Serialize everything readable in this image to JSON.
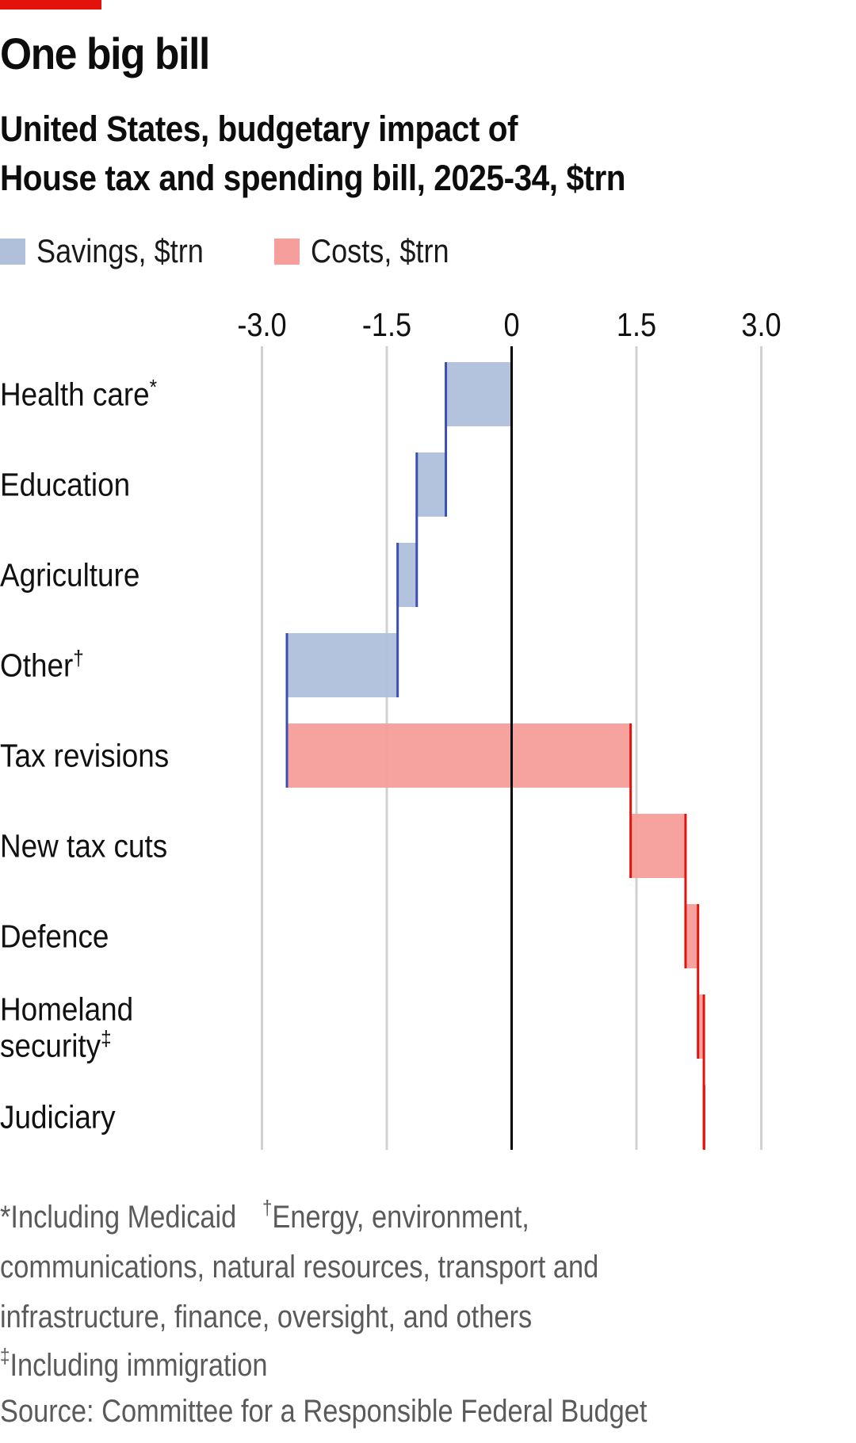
{
  "header": {
    "title": "One big bill",
    "subtitle_line1": "United States, budgetary impact of",
    "subtitle_line2": "House tax and spending bill, 2025-34, $trn"
  },
  "legend": [
    {
      "label": "Savings, $trn",
      "color": "#b0c0db"
    },
    {
      "label": "Costs, $trn",
      "color": "#f59e9b"
    }
  ],
  "colors": {
    "accent": "#e3120b",
    "savings_fill": "#b0c0db",
    "savings_edge": "#3a4fb0",
    "costs_fill": "#f59e9b",
    "costs_edge": "#e3120b",
    "zero_line": "#000000",
    "grid": "#d0d0d0"
  },
  "chart_data": {
    "type": "bar",
    "subtype": "waterfall-horizontal",
    "title": "One big bill",
    "subtitle": "United States, budgetary impact of House tax and spending bill, 2025-34, $trn",
    "xlabel": "",
    "ylabel": "",
    "xlim": [
      -3.0,
      3.0
    ],
    "x_ticks": [
      -3.0,
      -1.5,
      0,
      1.5,
      3.0
    ],
    "x_tick_labels": [
      "-3.0",
      "-1.5",
      "0",
      "1.5",
      "3.0"
    ],
    "grid": true,
    "legend_position": "top-left",
    "categories": [
      {
        "label": "Health care",
        "mark": "*"
      },
      {
        "label": "Education",
        "mark": ""
      },
      {
        "label": "Agriculture",
        "mark": ""
      },
      {
        "label": "Other",
        "mark": "†"
      },
      {
        "label": "Tax revisions",
        "mark": ""
      },
      {
        "label": "New tax cuts",
        "mark": ""
      },
      {
        "label": "Defence",
        "mark": ""
      },
      {
        "label": "Homeland security",
        "label_lines": [
          "Homeland",
          "security"
        ],
        "mark": "‡"
      },
      {
        "label": "Judiciary",
        "mark": ""
      }
    ],
    "series": [
      {
        "name": "Savings, $trn",
        "values": [
          -0.79,
          -0.35,
          -0.23,
          -1.33,
          null,
          null,
          null,
          null,
          null
        ]
      },
      {
        "name": "Costs, $trn",
        "values": [
          null,
          null,
          null,
          null,
          4.13,
          0.66,
          0.15,
          0.07,
          0.003
        ]
      }
    ],
    "values": [
      -0.79,
      -0.35,
      -0.23,
      -1.33,
      4.13,
      0.66,
      0.15,
      0.07,
      0.003
    ],
    "cumulative_end": [
      -0.79,
      -1.14,
      -1.37,
      -2.7,
      1.43,
      2.09,
      2.24,
      2.31,
      2.31
    ]
  },
  "footnotes": {
    "line1_a": "*Including Medicaid",
    "line1_b_mark": "†",
    "line1_b": "Energy, environment,",
    "line2": "communications, natural resources, transport and",
    "line3": "infrastructure, finance, oversight, and others",
    "line4_mark": "‡",
    "line4": "Including immigration",
    "source": "Source: Committee for a Responsible Federal Budget"
  }
}
